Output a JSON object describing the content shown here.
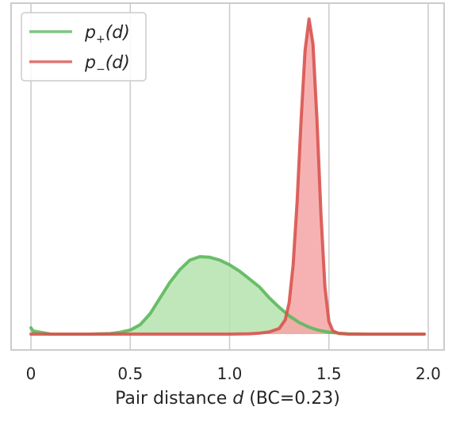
{
  "chart_data": {
    "type": "area",
    "xlim": [
      -0.1,
      2.08
    ],
    "ylim": [
      0,
      1.0
    ],
    "grid": "vertical",
    "legend_position": "top-left",
    "xticks": [
      {
        "value": 0,
        "label": "0"
      },
      {
        "value": 0.5,
        "label": "0.5"
      },
      {
        "value": 1.0,
        "label": "1.0"
      },
      {
        "value": 1.5,
        "label": "1.5"
      },
      {
        "value": 2.0,
        "label": "2.0"
      }
    ],
    "xlabel": {
      "prefix": "Pair distance ",
      "var": "d",
      "suffix": " (BC=0.23)"
    },
    "series": [
      {
        "key": "p_plus",
        "name": {
          "base": "p",
          "sub": "+",
          "tail": "(d)"
        },
        "line_color": "#5cb85c",
        "fill_color": "#b5e3ad",
        "points": [
          [
            0.0,
            0.02
          ],
          [
            0.01,
            0.01
          ],
          [
            0.1,
            0.0
          ],
          [
            0.3,
            0.0
          ],
          [
            0.4,
            0.002
          ],
          [
            0.45,
            0.006
          ],
          [
            0.5,
            0.013
          ],
          [
            0.55,
            0.03
          ],
          [
            0.6,
            0.065
          ],
          [
            0.65,
            0.115
          ],
          [
            0.7,
            0.165
          ],
          [
            0.75,
            0.205
          ],
          [
            0.8,
            0.235
          ],
          [
            0.85,
            0.246
          ],
          [
            0.9,
            0.244
          ],
          [
            0.95,
            0.235
          ],
          [
            1.0,
            0.22
          ],
          [
            1.05,
            0.2
          ],
          [
            1.1,
            0.175
          ],
          [
            1.15,
            0.15
          ],
          [
            1.2,
            0.115
          ],
          [
            1.25,
            0.085
          ],
          [
            1.3,
            0.058
          ],
          [
            1.35,
            0.037
          ],
          [
            1.4,
            0.022
          ],
          [
            1.45,
            0.012
          ],
          [
            1.5,
            0.006
          ],
          [
            1.55,
            0.003
          ],
          [
            1.6,
            0.001
          ],
          [
            1.7,
            0.0
          ],
          [
            1.98,
            0.0
          ]
        ]
      },
      {
        "key": "p_minus",
        "name": {
          "base": "p",
          "sub": "−",
          "tail": "(d)"
        },
        "line_color": "#d9534f",
        "fill_color": "#f4a5a5",
        "points": [
          [
            0.0,
            0.0
          ],
          [
            1.0,
            0.0
          ],
          [
            1.1,
            0.001
          ],
          [
            1.15,
            0.003
          ],
          [
            1.2,
            0.007
          ],
          [
            1.25,
            0.018
          ],
          [
            1.28,
            0.045
          ],
          [
            1.3,
            0.1
          ],
          [
            1.32,
            0.22
          ],
          [
            1.34,
            0.42
          ],
          [
            1.36,
            0.68
          ],
          [
            1.38,
            0.9
          ],
          [
            1.4,
            1.0
          ],
          [
            1.42,
            0.92
          ],
          [
            1.44,
            0.68
          ],
          [
            1.46,
            0.38
          ],
          [
            1.48,
            0.15
          ],
          [
            1.5,
            0.04
          ],
          [
            1.52,
            0.01
          ],
          [
            1.55,
            0.002
          ],
          [
            1.6,
            0.0
          ],
          [
            1.98,
            0.0
          ]
        ]
      }
    ]
  }
}
